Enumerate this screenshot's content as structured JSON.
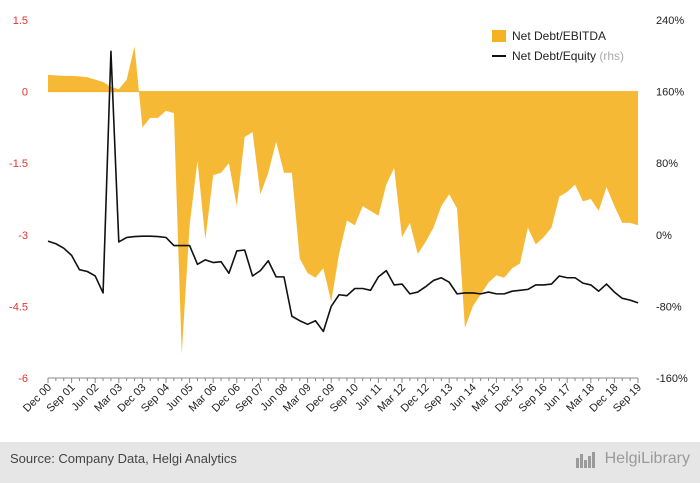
{
  "chart_data": {
    "type": "area+line",
    "series": [
      {
        "name": "Net Debt/EBITDA",
        "axis": "left",
        "style": "area",
        "color": "#f5b324",
        "x": [
          "Dec 00",
          "Mar 01",
          "Jun 01",
          "Sep 01",
          "Dec 01",
          "Mar 02",
          "Jun 02",
          "Sep 02",
          "Dec 02",
          "Mar 03",
          "Jun 03",
          "Sep 03",
          "Dec 03",
          "Mar 04",
          "Jun 04",
          "Sep 04",
          "Dec 04",
          "Mar 05",
          "Jun 05",
          "Sep 05",
          "Dec 05",
          "Mar 06",
          "Jun 06",
          "Sep 06",
          "Dec 06",
          "Mar 07",
          "Jun 07",
          "Sep 07",
          "Dec 07",
          "Mar 08",
          "Jun 08",
          "Sep 08",
          "Dec 08",
          "Mar 09",
          "Jun 09",
          "Sep 09",
          "Dec 09",
          "Mar 10",
          "Jun 10",
          "Sep 10",
          "Dec 10",
          "Mar 11",
          "Jun 11",
          "Sep 11",
          "Dec 11",
          "Mar 12",
          "Jun 12",
          "Sep 12",
          "Dec 12",
          "Mar 13",
          "Jun 13",
          "Sep 13",
          "Dec 13",
          "Mar 14",
          "Jun 14",
          "Sep 14",
          "Dec 14",
          "Mar 15",
          "Jun 15",
          "Sep 15",
          "Dec 15",
          "Mar 16",
          "Jun 16",
          "Sep 16",
          "Dec 16",
          "Mar 17",
          "Jun 17",
          "Sep 17",
          "Dec 17",
          "Mar 18",
          "Jun 18",
          "Sep 18",
          "Dec 18",
          "Mar 19",
          "Jun 19",
          "Sep 19"
        ],
        "values": [
          0.35,
          0.34,
          0.33,
          0.33,
          0.32,
          0.3,
          0.25,
          0.2,
          0.1,
          0.05,
          0.25,
          0.95,
          -0.75,
          -0.55,
          -0.55,
          -0.4,
          -0.45,
          -5.5,
          -2.8,
          -1.45,
          -3.1,
          -1.75,
          -1.7,
          -1.5,
          -2.4,
          -0.95,
          -0.85,
          -2.15,
          -1.7,
          -1.05,
          -1.7,
          -1.7,
          -3.5,
          -3.8,
          -3.9,
          -3.7,
          -4.4,
          -3.4,
          -2.7,
          -2.8,
          -2.4,
          -2.5,
          -2.6,
          -1.95,
          -1.6,
          -3.05,
          -2.75,
          -3.4,
          -3.15,
          -2.85,
          -2.4,
          -2.15,
          -2.45,
          -4.95,
          -4.5,
          -4.25,
          -4.0,
          -3.85,
          -3.9,
          -3.7,
          -3.6,
          -2.85,
          -3.2,
          -3.05,
          -2.85,
          -2.2,
          -2.1,
          -1.95,
          -2.3,
          -2.25,
          -2.5,
          -2.0,
          -2.4,
          -2.75,
          -2.75,
          -2.8
        ]
      },
      {
        "name": "Net Debt/Equity",
        "name_suffix": "(rhs)",
        "axis": "right",
        "style": "line",
        "color": "#111111",
        "x": [
          "Dec 00",
          "Mar 01",
          "Jun 01",
          "Sep 01",
          "Dec 01",
          "Mar 02",
          "Jun 02",
          "Sep 02",
          "Dec 02",
          "Mar 03",
          "Jun 03",
          "Sep 03",
          "Dec 03",
          "Mar 04",
          "Jun 04",
          "Sep 04",
          "Dec 04",
          "Mar 05",
          "Jun 05",
          "Sep 05",
          "Dec 05",
          "Mar 06",
          "Jun 06",
          "Sep 06",
          "Dec 06",
          "Mar 07",
          "Jun 07",
          "Sep 07",
          "Dec 07",
          "Mar 08",
          "Jun 08",
          "Sep 08",
          "Dec 08",
          "Mar 09",
          "Jun 09",
          "Sep 09",
          "Dec 09",
          "Mar 10",
          "Jun 10",
          "Sep 10",
          "Dec 10",
          "Mar 11",
          "Jun 11",
          "Sep 11",
          "Dec 11",
          "Mar 12",
          "Jun 12",
          "Sep 12",
          "Dec 12",
          "Mar 13",
          "Jun 13",
          "Sep 13",
          "Dec 13",
          "Mar 14",
          "Jun 14",
          "Sep 14",
          "Dec 14",
          "Mar 15",
          "Jun 15",
          "Sep 15",
          "Dec 15",
          "Mar 16",
          "Jun 16",
          "Sep 16",
          "Dec 16",
          "Mar 17",
          "Jun 17",
          "Sep 17",
          "Dec 17",
          "Mar 18",
          "Jun 18",
          "Sep 18",
          "Dec 18",
          "Mar 19",
          "Jun 19",
          "Sep 19"
        ],
        "values": [
          -7,
          -10,
          -15,
          -23,
          -39,
          -41,
          -46,
          -65,
          205,
          -8,
          -3,
          -2,
          -1.5,
          -1.5,
          -2,
          -3,
          -12,
          -12,
          -12,
          -33,
          -28,
          -31,
          -30,
          -43,
          -18,
          -17,
          -46,
          -40,
          -29,
          -47,
          -47,
          -91,
          -96,
          -100,
          -96,
          -108,
          -80,
          -67,
          -68,
          -60,
          -60,
          -62,
          -47,
          -40,
          -56,
          -55,
          -66,
          -64,
          -58,
          -51,
          -48,
          -53,
          -66,
          -65,
          -65,
          -66,
          -64,
          -66,
          -66,
          -63,
          -62,
          -61,
          -56,
          -56,
          -55,
          -46,
          -48,
          -48,
          -54,
          -56,
          -63,
          -55,
          -64,
          -71,
          -73,
          -76
        ]
      }
    ],
    "x_tick_labels": [
      "Dec 00",
      "Sep 01",
      "Jun 02",
      "Mar 03",
      "Dec 03",
      "Sep 04",
      "Jun 05",
      "Mar 06",
      "Dec 06",
      "Sep 07",
      "Jun 08",
      "Mar 09",
      "Dec 09",
      "Sep 10",
      "Jun 11",
      "Mar 12",
      "Dec 12",
      "Sep 13",
      "Jun 14",
      "Mar 15",
      "Dec 15",
      "Sep 16",
      "Jun 17",
      "Mar 18",
      "Dec 18",
      "Sep 19"
    ],
    "y_left": {
      "ticks": [
        1.5,
        0,
        -1.5,
        -3,
        -4.5,
        -6
      ],
      "labels": [
        "1.5",
        "0",
        "-1.5",
        "-3",
        "-4.5",
        "-6"
      ],
      "ylim": [
        -6,
        1.5
      ]
    },
    "y_right": {
      "ticks": [
        240,
        160,
        80,
        0,
        -80,
        -160
      ],
      "labels": [
        "240%",
        "160%",
        "80%",
        "0%",
        "-80%",
        "-160%"
      ],
      "ylim": [
        -160,
        240
      ]
    },
    "grid": false,
    "legend_position": "top-right"
  },
  "footer": {
    "source": "Source: Company Data, Helgi Analytics",
    "brand": "HelgiLibrary"
  }
}
